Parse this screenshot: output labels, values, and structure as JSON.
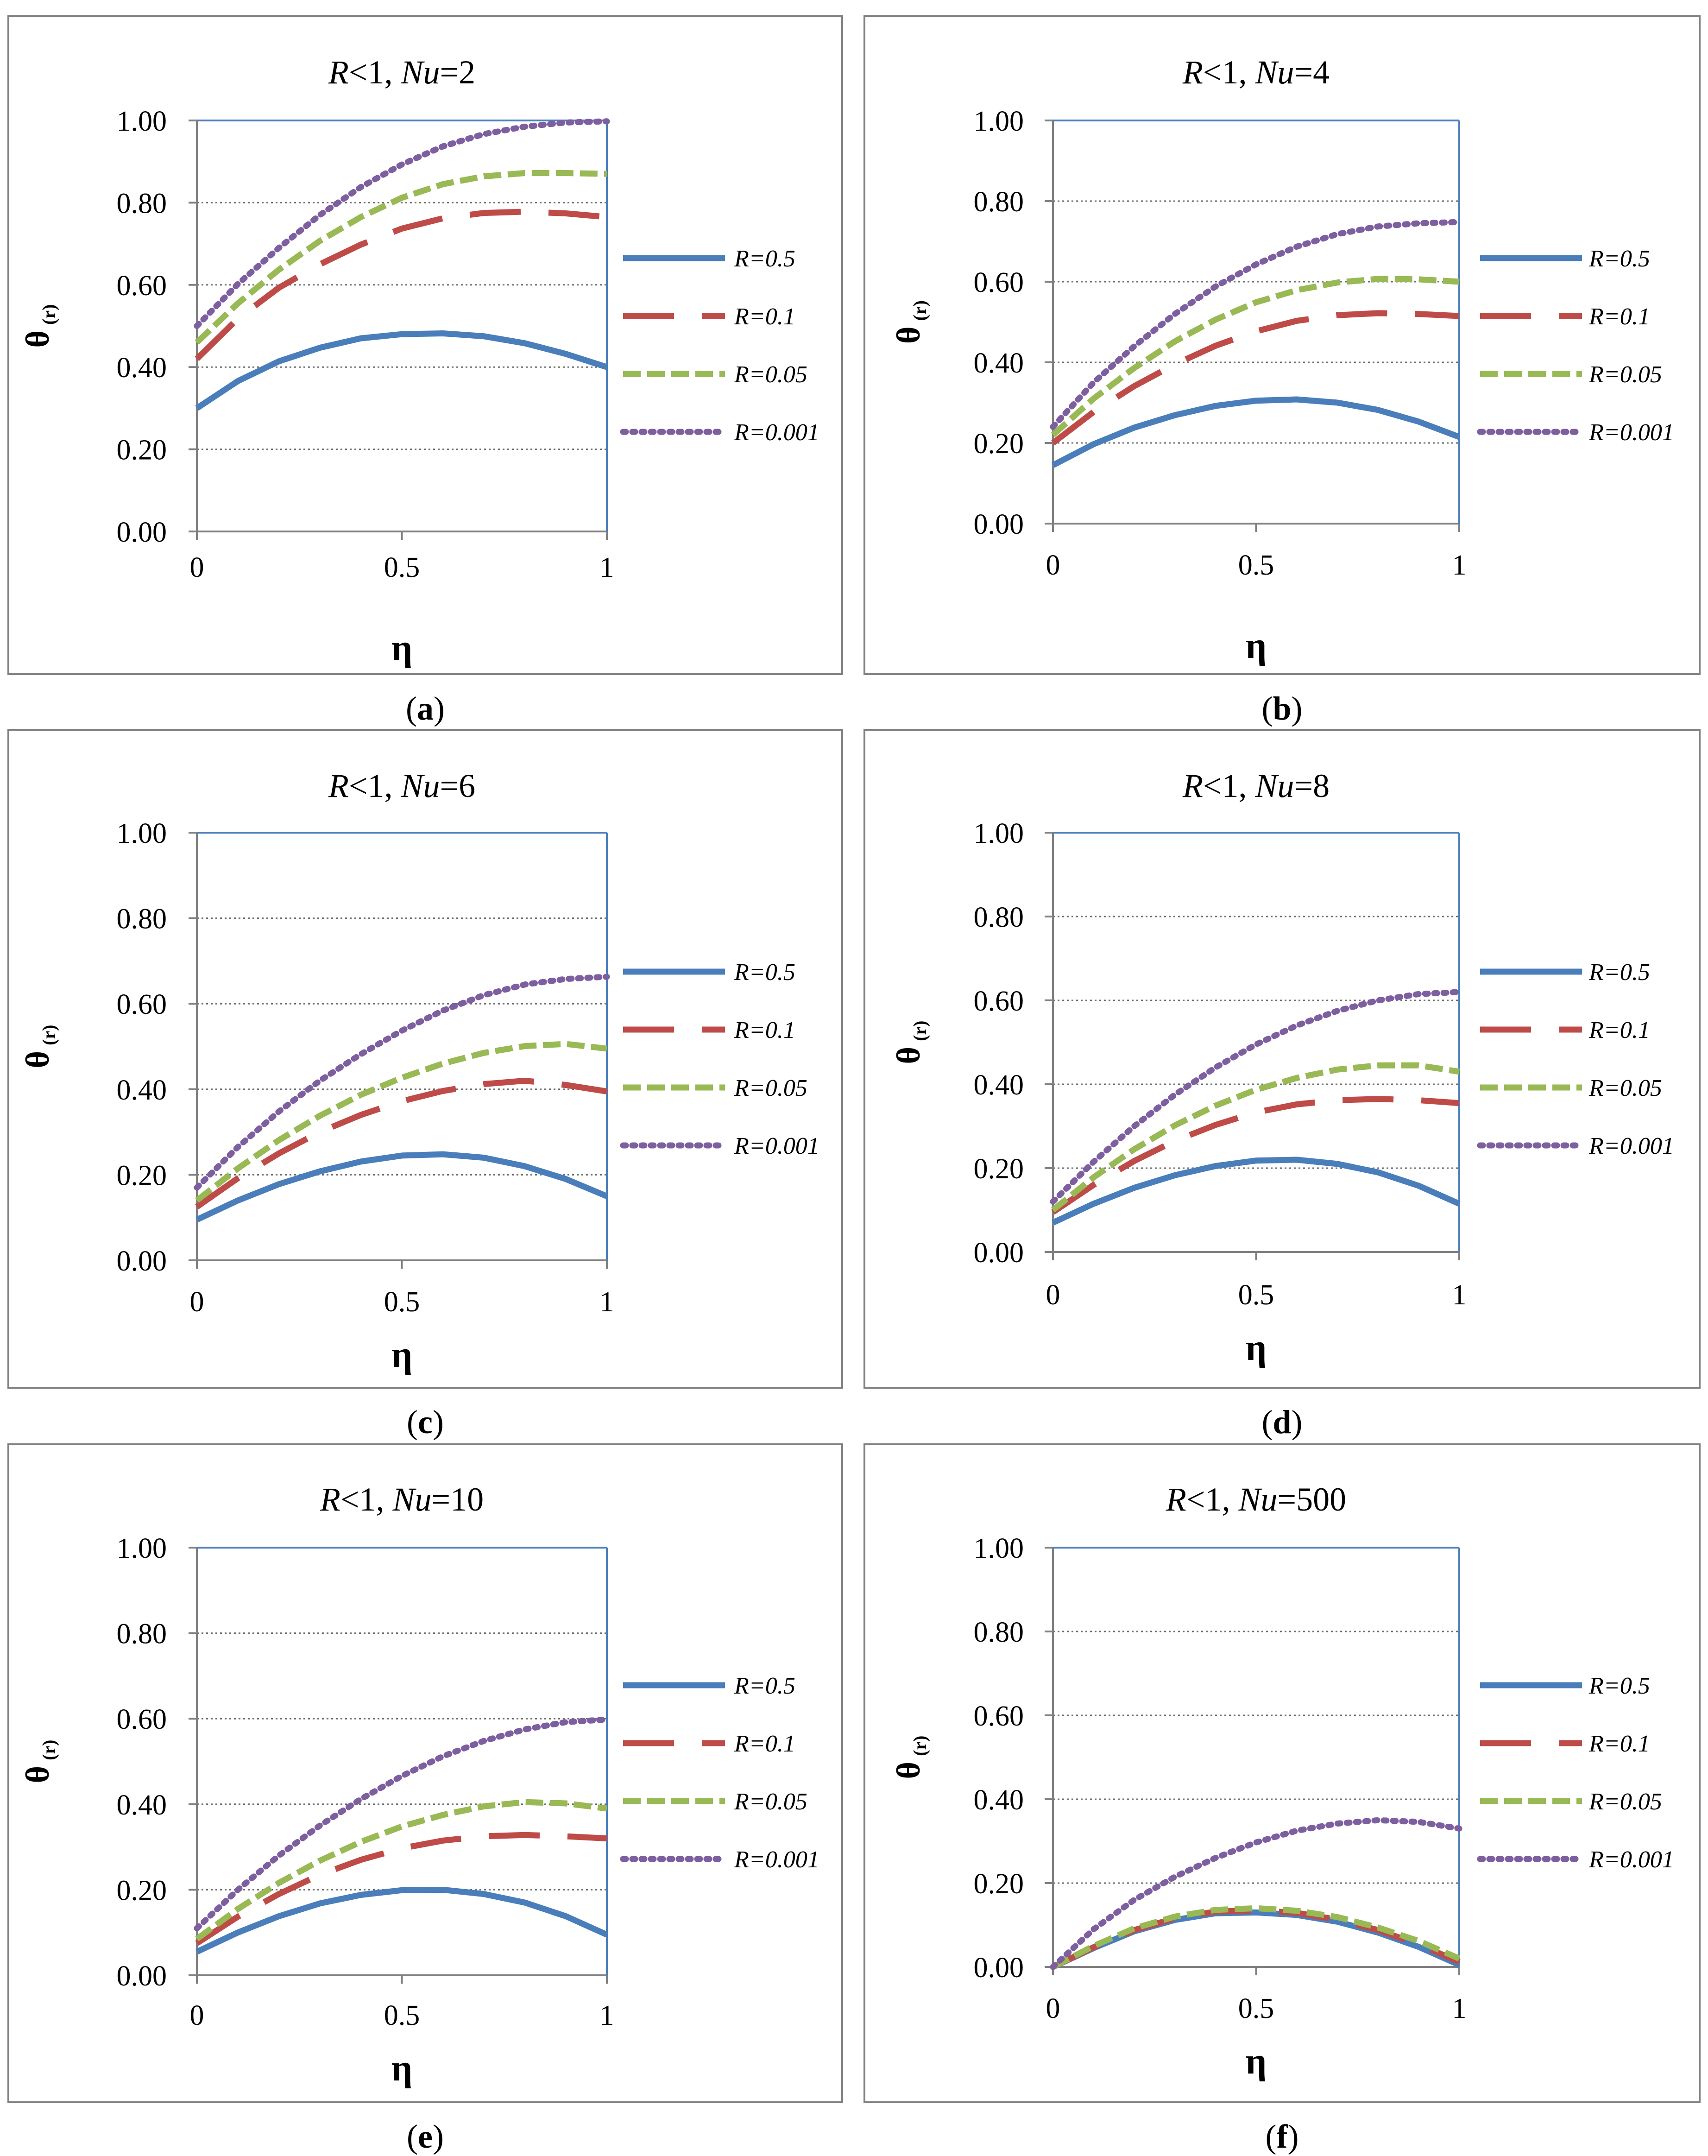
{
  "figure": {
    "y_symbol": "θ",
    "y_subscript": "(r)",
    "x_symbol": "η"
  },
  "series_style": [
    {
      "name": "R=0.5",
      "color": "#4a7ebb",
      "dash": "solid"
    },
    {
      "name": "R=0.1",
      "color": "#be4b48",
      "dash": "long-dash"
    },
    {
      "name": "R=0.05",
      "color": "#98b954",
      "dash": "dash"
    },
    {
      "name": "R=0.001",
      "color": "#7d5fa0",
      "dash": "dot"
    }
  ],
  "chart_data": [
    {
      "type": "line",
      "panel_label": "(a)",
      "title_italic_a": "R",
      "title_mid": "<1, ",
      "title_italic_b": "Nu",
      "title_end": "=2",
      "xlabel": "η",
      "ylabel": "θ (r)",
      "xlim": [
        0,
        1
      ],
      "ylim": [
        0,
        1
      ],
      "x_ticks": [
        "0",
        "0.5",
        "1"
      ],
      "y_ticks": [
        "0.00",
        "0.20",
        "0.40",
        "0.60",
        "0.80",
        "1.00"
      ],
      "x": [
        0,
        0.1,
        0.2,
        0.3,
        0.4,
        0.5,
        0.6,
        0.7,
        0.8,
        0.9,
        1.0
      ],
      "series": [
        {
          "name": "R=0.5",
          "values": [
            0.3,
            0.366,
            0.414,
            0.447,
            0.47,
            0.48,
            0.482,
            0.475,
            0.458,
            0.432,
            0.4
          ]
        },
        {
          "name": "R=0.1",
          "values": [
            0.42,
            0.518,
            0.593,
            0.65,
            0.698,
            0.737,
            0.762,
            0.775,
            0.778,
            0.774,
            0.765
          ]
        },
        {
          "name": "R=0.05",
          "values": [
            0.46,
            0.555,
            0.637,
            0.707,
            0.765,
            0.812,
            0.845,
            0.864,
            0.872,
            0.872,
            0.87
          ]
        },
        {
          "name": "R=0.001",
          "values": [
            0.5,
            0.602,
            0.69,
            0.77,
            0.838,
            0.893,
            0.937,
            0.967,
            0.985,
            0.995,
            0.998
          ]
        }
      ]
    },
    {
      "type": "line",
      "panel_label": "(b)",
      "title_italic_a": "R",
      "title_mid": "<1, ",
      "title_italic_b": "Nu",
      "title_end": "=4",
      "xlabel": "η",
      "ylabel": "θ (r)",
      "xlim": [
        0,
        1
      ],
      "ylim": [
        0,
        1
      ],
      "x_ticks": [
        "0",
        "0.5",
        "1"
      ],
      "y_ticks": [
        "0.00",
        "0.20",
        "0.40",
        "0.60",
        "0.80",
        "1.00"
      ],
      "x": [
        0,
        0.1,
        0.2,
        0.3,
        0.4,
        0.5,
        0.6,
        0.7,
        0.8,
        0.9,
        1.0
      ],
      "series": [
        {
          "name": "R=0.5",
          "values": [
            0.145,
            0.197,
            0.238,
            0.269,
            0.292,
            0.305,
            0.308,
            0.3,
            0.282,
            0.253,
            0.215
          ]
        },
        {
          "name": "R=0.1",
          "values": [
            0.2,
            0.277,
            0.341,
            0.395,
            0.441,
            0.477,
            0.503,
            0.517,
            0.522,
            0.52,
            0.515
          ]
        },
        {
          "name": "R=0.05",
          "values": [
            0.22,
            0.31,
            0.386,
            0.452,
            0.506,
            0.549,
            0.579,
            0.598,
            0.607,
            0.606,
            0.6
          ]
        },
        {
          "name": "R=0.001",
          "values": [
            0.24,
            0.35,
            0.44,
            0.52,
            0.588,
            0.643,
            0.687,
            0.718,
            0.737,
            0.745,
            0.748
          ]
        }
      ]
    },
    {
      "type": "line",
      "panel_label": "(c)",
      "title_italic_a": "R",
      "title_mid": "<1, ",
      "title_italic_b": "Nu",
      "title_end": "=6",
      "xlabel": "η",
      "ylabel": "θ (r)",
      "xlim": [
        0,
        1
      ],
      "ylim": [
        0,
        1
      ],
      "x_ticks": [
        "0",
        "0.5",
        "1"
      ],
      "y_ticks": [
        "0.00",
        "0.20",
        "0.40",
        "0.60",
        "0.80",
        "1.00"
      ],
      "x": [
        0,
        0.1,
        0.2,
        0.3,
        0.4,
        0.5,
        0.6,
        0.7,
        0.8,
        0.9,
        1.0
      ],
      "series": [
        {
          "name": "R=0.5",
          "values": [
            0.095,
            0.14,
            0.178,
            0.208,
            0.231,
            0.245,
            0.248,
            0.24,
            0.22,
            0.19,
            0.15
          ]
        },
        {
          "name": "R=0.1",
          "values": [
            0.125,
            0.192,
            0.25,
            0.3,
            0.34,
            0.372,
            0.396,
            0.412,
            0.42,
            0.41,
            0.395
          ]
        },
        {
          "name": "R=0.05",
          "values": [
            0.14,
            0.215,
            0.281,
            0.338,
            0.387,
            0.427,
            0.46,
            0.485,
            0.501,
            0.506,
            0.495
          ]
        },
        {
          "name": "R=0.001",
          "values": [
            0.17,
            0.265,
            0.348,
            0.42,
            0.482,
            0.537,
            0.584,
            0.62,
            0.645,
            0.658,
            0.663
          ]
        }
      ]
    },
    {
      "type": "line",
      "panel_label": "(d)",
      "title_italic_a": "R",
      "title_mid": "<1, ",
      "title_italic_b": "Nu",
      "title_end": "=8",
      "xlabel": "η",
      "ylabel": "θ (r)",
      "xlim": [
        0,
        1
      ],
      "ylim": [
        0,
        1
      ],
      "x_ticks": [
        "0",
        "0.5",
        "1"
      ],
      "y_ticks": [
        "0.00",
        "0.20",
        "0.40",
        "0.60",
        "0.80",
        "1.00"
      ],
      "x": [
        0,
        0.1,
        0.2,
        0.3,
        0.4,
        0.5,
        0.6,
        0.7,
        0.8,
        0.9,
        1.0
      ],
      "series": [
        {
          "name": "R=0.5",
          "values": [
            0.07,
            0.115,
            0.153,
            0.183,
            0.205,
            0.218,
            0.22,
            0.21,
            0.19,
            0.158,
            0.115
          ]
        },
        {
          "name": "R=0.1",
          "values": [
            0.095,
            0.16,
            0.217,
            0.265,
            0.303,
            0.333,
            0.352,
            0.362,
            0.365,
            0.362,
            0.355
          ]
        },
        {
          "name": "R=0.05",
          "values": [
            0.1,
            0.178,
            0.245,
            0.302,
            0.349,
            0.387,
            0.415,
            0.435,
            0.445,
            0.445,
            0.43
          ]
        },
        {
          "name": "R=0.001",
          "values": [
            0.12,
            0.215,
            0.3,
            0.375,
            0.44,
            0.495,
            0.54,
            0.575,
            0.6,
            0.615,
            0.62
          ]
        }
      ]
    },
    {
      "type": "line",
      "panel_label": "(e)",
      "title_italic_a": "R",
      "title_mid": "<1, ",
      "title_italic_b": "Nu",
      "title_end": "=10",
      "xlabel": "η",
      "ylabel": "θ (r)",
      "xlim": [
        0,
        1
      ],
      "ylim": [
        0,
        1
      ],
      "x_ticks": [
        "0",
        "0.5",
        "1"
      ],
      "y_ticks": [
        "0.00",
        "0.20",
        "0.40",
        "0.60",
        "0.80",
        "1.00"
      ],
      "x": [
        0,
        0.1,
        0.2,
        0.3,
        0.4,
        0.5,
        0.6,
        0.7,
        0.8,
        0.9,
        1.0
      ],
      "series": [
        {
          "name": "R=0.5",
          "values": [
            0.055,
            0.1,
            0.138,
            0.168,
            0.188,
            0.199,
            0.2,
            0.19,
            0.17,
            0.138,
            0.095
          ]
        },
        {
          "name": "R=0.1",
          "values": [
            0.075,
            0.137,
            0.19,
            0.235,
            0.27,
            0.297,
            0.315,
            0.325,
            0.328,
            0.325,
            0.32
          ]
        },
        {
          "name": "R=0.05",
          "values": [
            0.085,
            0.155,
            0.216,
            0.268,
            0.312,
            0.348,
            0.375,
            0.395,
            0.405,
            0.402,
            0.39
          ]
        },
        {
          "name": "R=0.001",
          "values": [
            0.11,
            0.2,
            0.28,
            0.35,
            0.412,
            0.466,
            0.512,
            0.548,
            0.575,
            0.592,
            0.598
          ]
        }
      ]
    },
    {
      "type": "line",
      "panel_label": "(f)",
      "title_italic_a": "R",
      "title_mid": "<1, ",
      "title_italic_b": "Nu",
      "title_end": "=500",
      "xlabel": "η",
      "ylabel": "θ (r)",
      "xlim": [
        0,
        1
      ],
      "ylim": [
        0,
        1
      ],
      "x_ticks": [
        "0",
        "0.5",
        "1"
      ],
      "y_ticks": [
        "0.00",
        "0.20",
        "0.40",
        "0.60",
        "0.80",
        "1.00"
      ],
      "x": [
        0,
        0.1,
        0.2,
        0.3,
        0.4,
        0.5,
        0.6,
        0.7,
        0.8,
        0.9,
        1.0
      ],
      "series": [
        {
          "name": "R=0.5",
          "values": [
            0.0,
            0.045,
            0.085,
            0.112,
            0.128,
            0.13,
            0.124,
            0.108,
            0.082,
            0.048,
            0.005
          ]
        },
        {
          "name": "R=0.1",
          "values": [
            0.0,
            0.047,
            0.088,
            0.116,
            0.132,
            0.135,
            0.129,
            0.113,
            0.088,
            0.054,
            0.012
          ]
        },
        {
          "name": "R=0.05",
          "values": [
            0.0,
            0.05,
            0.092,
            0.12,
            0.136,
            0.14,
            0.134,
            0.119,
            0.094,
            0.062,
            0.02
          ]
        },
        {
          "name": "R=0.001",
          "values": [
            0.0,
            0.09,
            0.16,
            0.215,
            0.26,
            0.297,
            0.325,
            0.342,
            0.35,
            0.346,
            0.33
          ]
        }
      ]
    }
  ]
}
